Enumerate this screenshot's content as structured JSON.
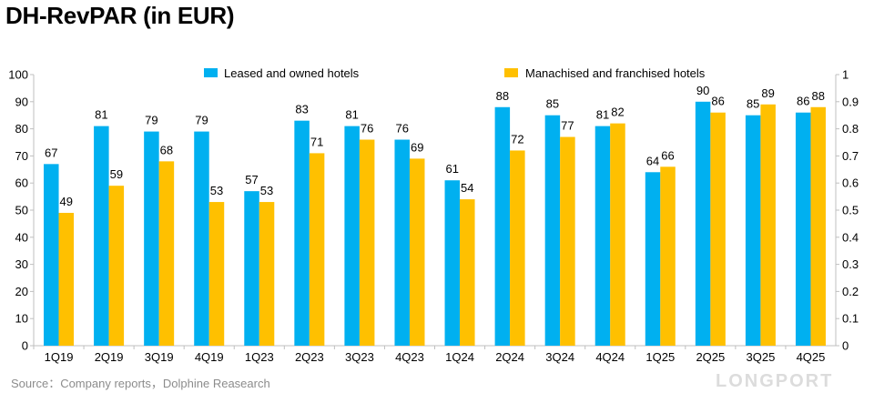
{
  "title": "DH-RevPAR (in EUR)",
  "source": "Source：Company reports，Dolphine Reasearch",
  "watermark": "LONGPORT",
  "chart_data": {
    "type": "bar",
    "title": "DH-RevPAR (in EUR)",
    "categories": [
      "1Q19",
      "2Q19",
      "3Q19",
      "4Q19",
      "1Q23",
      "2Q23",
      "3Q23",
      "4Q23",
      "1Q24",
      "2Q24",
      "3Q24",
      "4Q24",
      "1Q25",
      "2Q25",
      "3Q25",
      "4Q25"
    ],
    "series": [
      {
        "name": "Leased and owned hotels",
        "color": "#00B0F0",
        "values": [
          67,
          81,
          79,
          79,
          57,
          83,
          81,
          76,
          61,
          88,
          85,
          81,
          64,
          90,
          85,
          86
        ]
      },
      {
        "name": "Manachised and franchised hotels",
        "color": "#FFC000",
        "values": [
          49,
          59,
          68,
          53,
          53,
          71,
          76,
          69,
          54,
          72,
          77,
          82,
          66,
          86,
          89,
          88
        ]
      }
    ],
    "ylim": [
      0,
      100
    ],
    "yticks": [
      0,
      10,
      20,
      30,
      40,
      50,
      60,
      70,
      80,
      90,
      100
    ],
    "y2lim": [
      0,
      1
    ],
    "y2ticks": [
      "0",
      "0.1",
      "0.2",
      "0.3",
      "0.4",
      "0.5",
      "0.6",
      "0.7",
      "0.8",
      "0.9",
      "1"
    ],
    "xlabel": "",
    "ylabel": "",
    "legend": "top",
    "grid": false
  }
}
